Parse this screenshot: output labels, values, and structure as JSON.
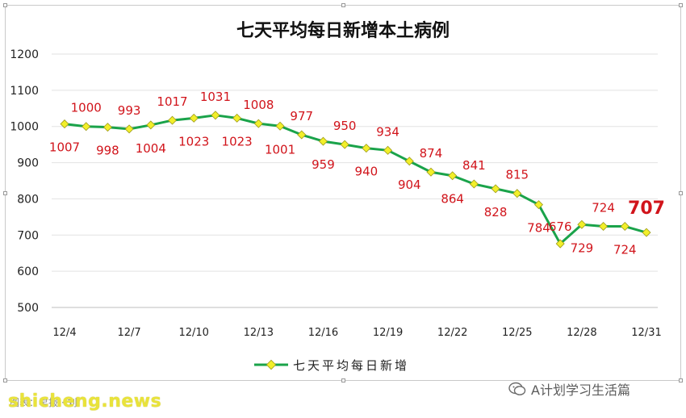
{
  "watermark_left": "shicheng.news",
  "source_line": "图表：早报 · 刘",
  "watermark_right": "A计划学习生活篇",
  "watermark_icon": "wechat-icon",
  "chart_data": {
    "type": "line",
    "title": "七天平均每日新增本土病例",
    "legend": [
      {
        "name": "七天平均每日新增",
        "color": "#1aa34a",
        "marker": "#f2ef2a"
      }
    ],
    "legend_position": "bottom",
    "grid": true,
    "ylim": [
      500,
      1200
    ],
    "yticks": [
      500,
      600,
      700,
      800,
      900,
      1000,
      1100,
      1200
    ],
    "x": [
      "12/4",
      "12/5",
      "12/6",
      "12/7",
      "12/8",
      "12/9",
      "12/10",
      "12/11",
      "12/12",
      "12/13",
      "12/14",
      "12/15",
      "12/16",
      "12/17",
      "12/18",
      "12/19",
      "12/20",
      "12/21",
      "12/22",
      "12/23",
      "12/24",
      "12/25",
      "12/26",
      "12/27",
      "12/28",
      "12/29",
      "12/30",
      "12/31"
    ],
    "xtick_labels": [
      "12/4",
      "12/7",
      "12/10",
      "12/13",
      "12/16",
      "12/19",
      "12/22",
      "12/25",
      "12/28",
      "12/31"
    ],
    "series": [
      {
        "name": "七天平均每日新增",
        "values": [
          1007,
          1000,
          998,
          993,
          1004,
          1017,
          1023,
          1031,
          1023,
          1008,
          1001,
          977,
          959,
          950,
          940,
          934,
          904,
          874,
          864,
          841,
          828,
          815,
          784,
          676,
          729,
          724,
          724,
          707
        ]
      }
    ],
    "highlight_last": true
  }
}
